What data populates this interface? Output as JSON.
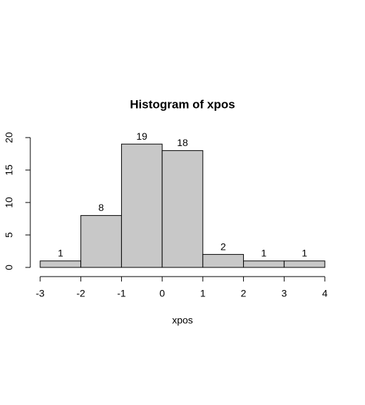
{
  "chart_data": {
    "type": "histogram",
    "title": "Histogram of xpos",
    "x_label": "xpos",
    "bins": [
      -3,
      -2,
      -1,
      0,
      1,
      2,
      3,
      4
    ],
    "values": [
      1,
      8,
      19,
      18,
      2,
      1,
      1
    ],
    "color": "#c8c8c8",
    "xlim": [
      -3,
      4
    ],
    "xticks": [
      -3,
      -2,
      -1,
      0,
      1,
      2,
      3,
      4
    ],
    "ylim": [
      0,
      20
    ],
    "yticks": [
      0,
      5,
      10,
      15,
      20
    ]
  }
}
